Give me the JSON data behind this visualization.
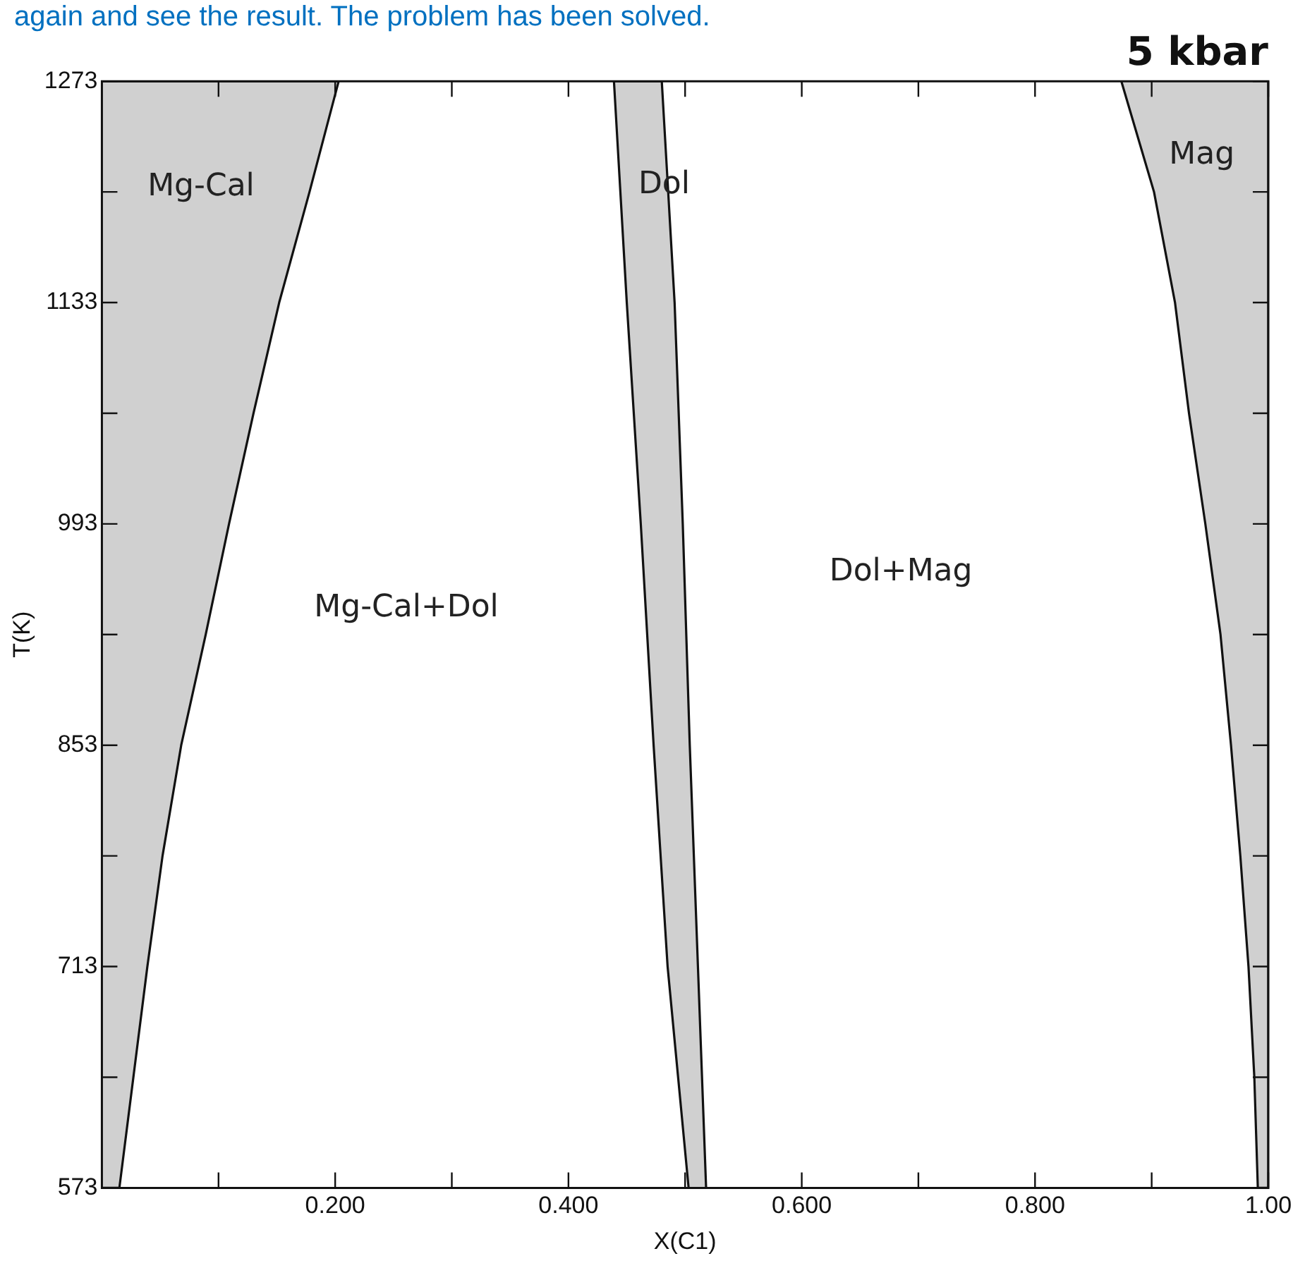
{
  "chart_data": {
    "type": "area",
    "title": "5 kbar",
    "xlabel": "X(C1)",
    "ylabel": "T(K)",
    "xlim": [
      0,
      1
    ],
    "ylim": [
      573,
      1273
    ],
    "xticks": [
      {
        "value": 0.1,
        "label": null
      },
      {
        "value": 0.2,
        "label": "0.200"
      },
      {
        "value": 0.3,
        "label": null
      },
      {
        "value": 0.4,
        "label": "0.400"
      },
      {
        "value": 0.5,
        "label": null
      },
      {
        "value": 0.6,
        "label": "0.600"
      },
      {
        "value": 0.7,
        "label": null
      },
      {
        "value": 0.8,
        "label": "0.800"
      },
      {
        "value": 0.9,
        "label": null
      },
      {
        "value": 1,
        "label": "1.00"
      }
    ],
    "yticks": [
      573,
      {
        "value": 643,
        "label": null
      },
      713,
      {
        "value": 783,
        "label": null
      },
      853,
      {
        "value": 923,
        "label": null
      },
      993,
      {
        "value": 1063,
        "label": null
      },
      1133,
      {
        "value": 1203,
        "label": null
      },
      1273
    ],
    "grid": false,
    "legend": false,
    "series": [
      {
        "name": "Mg-Cal",
        "color": "#d0d0d0",
        "x": [
          0,
          0.015,
          0.027,
          0.039,
          0.052,
          0.068,
          0.089,
          0.109,
          0.13,
          0.152,
          0.178,
          0.203,
          0
        ],
        "values": [
          573,
          573,
          643,
          713,
          783,
          853,
          923,
          993,
          1063,
          1133,
          1203,
          1273,
          1273
        ]
      },
      {
        "name": "Dol",
        "color": "#d0d0d0",
        "x": [
          0.503,
          0.485,
          0.473,
          0.462,
          0.45,
          0.439,
          0.48,
          0.491,
          0.498,
          0.504,
          0.511,
          0.518
        ],
        "values": [
          573,
          713,
          853,
          993,
          1133,
          1273,
          1273,
          1133,
          993,
          853,
          713,
          573
        ]
      },
      {
        "name": "Mag",
        "color": "#d0d0d0",
        "x": [
          0.874,
          0.902,
          0.92,
          0.932,
          0.946,
          0.959,
          0.968,
          0.976,
          0.983,
          0.988,
          0.991,
          1,
          1
        ],
        "values": [
          1273,
          1203,
          1133,
          1063,
          993,
          923,
          853,
          783,
          713,
          643,
          573,
          573,
          1273
        ]
      }
    ],
    "annotations": [
      "again and see the result. The problem has been solved.",
      "Mg-Cal+Dol",
      "Dol+Mag"
    ]
  }
}
